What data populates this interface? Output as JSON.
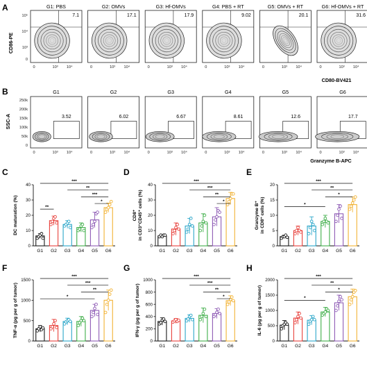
{
  "panel_letters": {
    "A": "A",
    "B": "B",
    "C": "C",
    "D": "D",
    "E": "E",
    "F": "F",
    "G": "G",
    "H": "H"
  },
  "colors": {
    "G1": "#1a1a1a",
    "G2": "#e8413c",
    "G3": "#2ba6c9",
    "G4": "#3fae49",
    "G5": "#8e5bb5",
    "G6": "#f2b233"
  },
  "groups": [
    "G1",
    "G2",
    "G3",
    "G4",
    "G5",
    "G6"
  ],
  "panelA": {
    "titles": [
      "G1: PBS",
      "G2: OMVs",
      "G3: Hf-OMVs",
      "G4: PBS + RT",
      "G5: OMVs + RT",
      "G6: Hf-OMVs + RT"
    ],
    "percents": [
      "7.1",
      "17.1",
      "17.9",
      "9.02",
      "20.1",
      "31.6"
    ],
    "ylabel": "CD86-PE",
    "xlabel": "CD80-BV421",
    "yticks": [
      "10⁵",
      "10⁴",
      "10³",
      "0"
    ],
    "xticks": [
      "0",
      "10³",
      "10⁴"
    ]
  },
  "panelB": {
    "titles": [
      "G1",
      "G2",
      "G3",
      "G4",
      "G5",
      "G6"
    ],
    "percents": [
      "3.52",
      "6.02",
      "6.67",
      "8.61",
      "12.6",
      "17.7"
    ],
    "ylabel": "SSC-A",
    "xlabel": "Granzyme B-APC",
    "yticks": [
      "250k",
      "200k",
      "150k",
      "100k",
      "50k",
      "0"
    ],
    "xticks": [
      "0",
      "10³",
      "10⁴"
    ]
  },
  "chart_data": [
    {
      "panel": "C",
      "type": "bar",
      "ylabel": "DC maturation (%)",
      "ylim": [
        0,
        40
      ],
      "yticks": [
        "0",
        "10",
        "20",
        "30",
        "40"
      ],
      "categories": [
        "G1",
        "G2",
        "G3",
        "G4",
        "G5",
        "G6"
      ],
      "values": [
        6.5,
        16.5,
        14,
        12,
        17,
        25
      ],
      "errors": [
        1.5,
        3,
        2.5,
        3,
        5,
        3
      ],
      "points": [
        [
          5,
          6,
          7,
          8,
          5
        ],
        [
          14,
          16,
          18,
          19,
          15
        ],
        [
          13,
          14,
          15,
          16,
          12
        ],
        [
          10,
          11,
          13,
          14,
          10
        ],
        [
          12,
          14,
          16,
          21,
          22
        ],
        [
          22,
          24,
          25,
          27,
          29
        ]
      ],
      "significance": [
        {
          "from": "G1",
          "to": "G2",
          "label": "**"
        },
        {
          "from": "G5",
          "to": "G6",
          "label": "*"
        },
        {
          "from": "G4",
          "to": "G6",
          "label": "***"
        },
        {
          "from": "G3",
          "to": "G6",
          "label": "**"
        },
        {
          "from": "G1",
          "to": "G6",
          "label": "***"
        }
      ]
    },
    {
      "panel": "D",
      "type": "bar",
      "ylabel": "CD8⁺ in CD3⁺CD45⁺ cells (%)",
      "ylim": [
        0,
        40
      ],
      "yticks": [
        "0",
        "10",
        "20",
        "30",
        "40"
      ],
      "categories": [
        "G1",
        "G2",
        "G3",
        "G4",
        "G5",
        "G6"
      ],
      "values": [
        6.5,
        11,
        13,
        15,
        19,
        31
      ],
      "errors": [
        1,
        4,
        5,
        6,
        6,
        4
      ],
      "points": [
        [
          6,
          7,
          6,
          7,
          7
        ],
        [
          8,
          10,
          12,
          14,
          11
        ],
        [
          9,
          11,
          14,
          18,
          13
        ],
        [
          10,
          13,
          16,
          20,
          15
        ],
        [
          14,
          17,
          19,
          23,
          22
        ],
        [
          27,
          29,
          31,
          34,
          34
        ]
      ],
      "significance": [
        {
          "from": "G5",
          "to": "G6",
          "label": "*"
        },
        {
          "from": "G4",
          "to": "G6",
          "label": "**"
        },
        {
          "from": "G3",
          "to": "G6",
          "label": "***"
        },
        {
          "from": "G1",
          "to": "G6",
          "label": "***"
        }
      ]
    },
    {
      "panel": "E",
      "type": "bar",
      "ylabel": "Granzyme B⁺ in CD8⁺ cells (%)",
      "ylim": [
        0,
        20
      ],
      "yticks": [
        "0",
        "5",
        "10",
        "15",
        "20"
      ],
      "categories": [
        "G1",
        "G2",
        "G3",
        "G4",
        "G5",
        "G6"
      ],
      "values": [
        3,
        5,
        6.5,
        8,
        10.5,
        13.5
      ],
      "errors": [
        0.5,
        1.5,
        3,
        2,
        3,
        2.5
      ],
      "points": [
        [
          2.5,
          3,
          3,
          3.5,
          2.8
        ],
        [
          4,
          5,
          6,
          5,
          4.5
        ],
        [
          4,
          6,
          8,
          7,
          5
        ],
        [
          7,
          8,
          9,
          8,
          7.5
        ],
        [
          8,
          10,
          12,
          13,
          9
        ],
        [
          12,
          13,
          14,
          15,
          16
        ]
      ],
      "significance": [
        {
          "from": "G1",
          "to": "G4",
          "label": "*"
        },
        {
          "from": "G4",
          "to": "G6",
          "label": "*"
        },
        {
          "from": "G3",
          "to": "G6",
          "label": "**"
        },
        {
          "from": "G1",
          "to": "G6",
          "label": "***"
        }
      ]
    },
    {
      "panel": "F",
      "type": "bar",
      "ylabel": "TNF-α (pg per g of tumor)",
      "ylim": [
        0,
        1500
      ],
      "yticks": [
        "0",
        "500",
        "1000",
        "1500"
      ],
      "categories": [
        "G1",
        "G2",
        "G3",
        "G4",
        "G5",
        "G6"
      ],
      "values": [
        300,
        380,
        480,
        480,
        750,
        1000
      ],
      "errors": [
        80,
        150,
        80,
        120,
        150,
        250
      ],
      "points": [
        [
          250,
          300,
          350,
          280,
          320
        ],
        [
          300,
          350,
          420,
          500,
          330
        ],
        [
          420,
          470,
          500,
          520,
          480
        ],
        [
          380,
          450,
          500,
          560,
          500
        ],
        [
          600,
          700,
          800,
          900,
          650
        ],
        [
          700,
          900,
          1000,
          1150,
          1250
        ]
      ],
      "significance": [
        {
          "from": "G1",
          "to": "G5",
          "label": "*"
        },
        {
          "from": "G4",
          "to": "G6",
          "label": "**"
        },
        {
          "from": "G3",
          "to": "G6",
          "label": "***"
        },
        {
          "from": "G1",
          "to": "G6",
          "label": "***"
        }
      ]
    },
    {
      "panel": "G",
      "type": "bar",
      "ylabel": "IFN-γ (pg per g of tumor)",
      "ylim": [
        0,
        1000
      ],
      "yticks": [
        "0",
        "200",
        "400",
        "600",
        "800",
        "1000"
      ],
      "categories": [
        "G1",
        "G2",
        "G3",
        "G4",
        "G5",
        "G6"
      ],
      "values": [
        320,
        330,
        370,
        420,
        450,
        660
      ],
      "errors": [
        60,
        40,
        60,
        120,
        80,
        80
      ],
      "points": [
        [
          280,
          300,
          340,
          360,
          320
        ],
        [
          310,
          330,
          350,
          320,
          340
        ],
        [
          330,
          360,
          400,
          420,
          350
        ],
        [
          350,
          400,
          450,
          520,
          400
        ],
        [
          400,
          430,
          470,
          520,
          450
        ],
        [
          600,
          640,
          680,
          720,
          660
        ]
      ],
      "significance": [
        {
          "from": "G5",
          "to": "G6",
          "label": "*"
        },
        {
          "from": "G4",
          "to": "G6",
          "label": "**"
        },
        {
          "from": "G3",
          "to": "G6",
          "label": "***"
        },
        {
          "from": "G1",
          "to": "G6",
          "label": "***"
        }
      ]
    },
    {
      "panel": "H",
      "type": "bar",
      "ylabel": "IL-6 (pg per g of tumor)",
      "ylim": [
        0,
        2000
      ],
      "yticks": [
        "0",
        "500",
        "1000",
        "1500",
        "2000"
      ],
      "categories": [
        "G1",
        "G2",
        "G3",
        "G4",
        "G5",
        "G6"
      ],
      "values": [
        520,
        750,
        680,
        950,
        1250,
        1450
      ],
      "errors": [
        150,
        200,
        150,
        150,
        250,
        250
      ],
      "points": [
        [
          400,
          500,
          550,
          600,
          550
        ],
        [
          600,
          700,
          800,
          900,
          750
        ],
        [
          550,
          650,
          700,
          800,
          700
        ],
        [
          850,
          900,
          950,
          1050,
          1000
        ],
        [
          1000,
          1150,
          1300,
          1450,
          1350
        ],
        [
          1200,
          1350,
          1450,
          1600,
          1650
        ]
      ],
      "significance": [
        {
          "from": "G1",
          "to": "G4",
          "label": "*"
        },
        {
          "from": "G4",
          "to": "G6",
          "label": "*"
        },
        {
          "from": "G3",
          "to": "G6",
          "label": "**"
        },
        {
          "from": "G1",
          "to": "G6",
          "label": "***"
        }
      ]
    }
  ]
}
